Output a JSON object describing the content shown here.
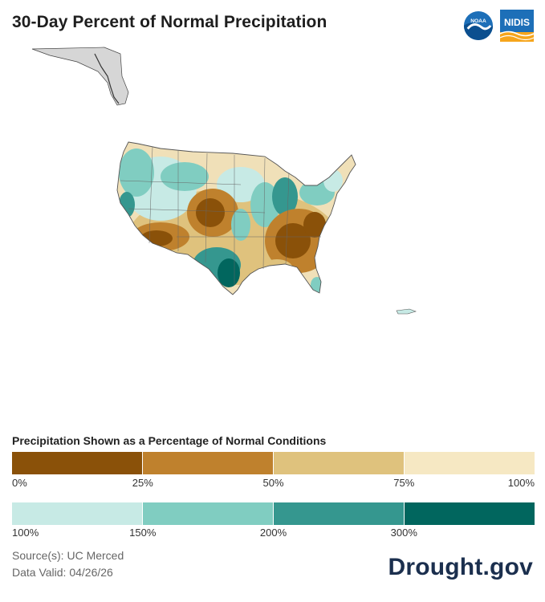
{
  "header": {
    "title": "30-Day Percent of Normal Precipitation",
    "logos": {
      "noaa_text": "NOAA",
      "nidis_text": "NIDIS"
    }
  },
  "map": {
    "colors": {
      "dark_brown": "#8a5109",
      "brown": "#bf812d",
      "tan": "#dfc27d",
      "cream": "#f6e8c3",
      "pale_teal": "#c7eae5",
      "teal": "#80cdc1",
      "dark_teal": "#35978f",
      "deep_teal": "#01665e"
    }
  },
  "legend": {
    "title": "Precipitation Shown as a Percentage of Normal Conditions",
    "dry_scale": {
      "colors": [
        "#8a5109",
        "#bf812d",
        "#dfc27d",
        "#f6e8c3"
      ],
      "ticks": [
        "0%",
        "25%",
        "50%",
        "75%",
        "100%"
      ]
    },
    "wet_scale": {
      "colors": [
        "#c7eae5",
        "#80cdc1",
        "#35978f",
        "#01665e"
      ],
      "ticks": [
        "100%",
        "150%",
        "200%",
        "300%"
      ]
    }
  },
  "footer": {
    "source": "Source(s): UC Merced",
    "valid": "Data Valid: 04/26/26",
    "brand": "Drought.gov"
  }
}
